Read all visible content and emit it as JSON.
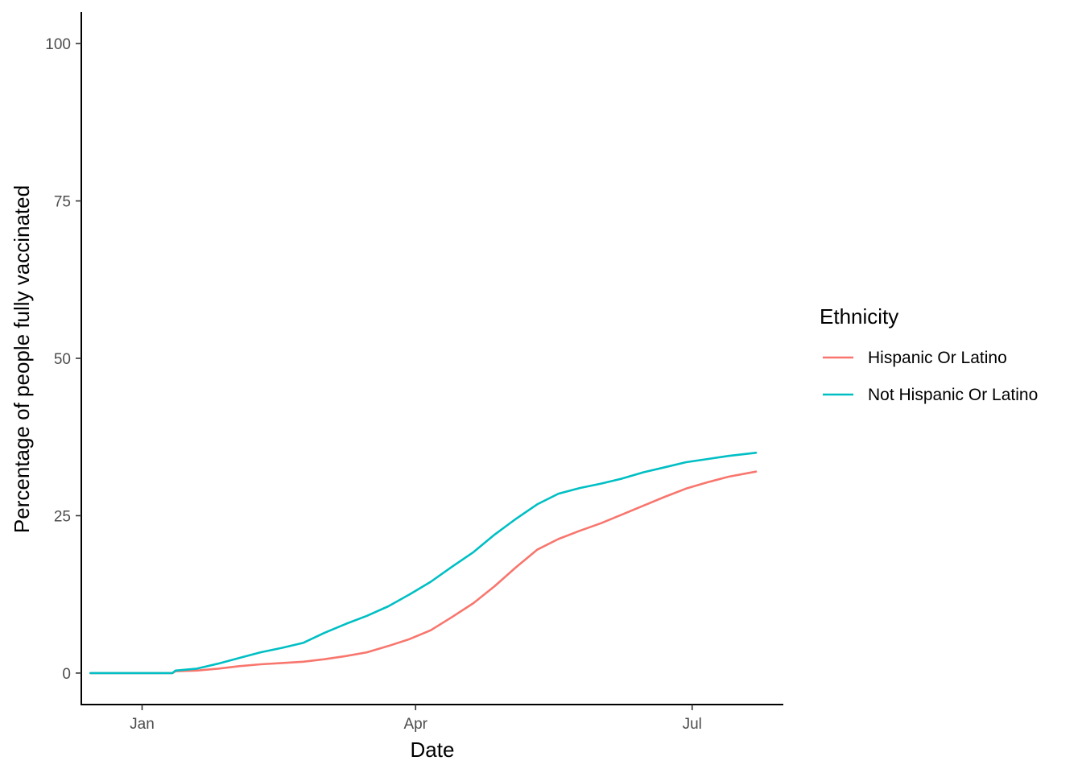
{
  "chart_data": {
    "type": "line",
    "title": "",
    "xlabel": "Date",
    "ylabel": "Percentage of people fully vaccinated",
    "x_axis_type": "date",
    "xlim": [
      "2020-12-12",
      "2021-07-31"
    ],
    "ylim": [
      -5,
      105
    ],
    "x_ticks": [
      {
        "date": "2021-01-01",
        "label": "Jan"
      },
      {
        "date": "2021-04-01",
        "label": "Apr"
      },
      {
        "date": "2021-07-01",
        "label": "Jul"
      }
    ],
    "y_ticks": [
      0,
      25,
      50,
      75,
      100
    ],
    "grid": false,
    "legend": {
      "title": "Ethnicity",
      "position": "right"
    },
    "series": [
      {
        "name": "Hispanic Or Latino",
        "color": "#F8766D",
        "points": [
          [
            "2020-12-15",
            0.0
          ],
          [
            "2020-12-22",
            0.0
          ],
          [
            "2020-12-29",
            0.0
          ],
          [
            "2021-01-05",
            0.0
          ],
          [
            "2021-01-11",
            0.0
          ],
          [
            "2021-01-12",
            0.3
          ],
          [
            "2021-01-19",
            0.4
          ],
          [
            "2021-01-26",
            0.7
          ],
          [
            "2021-02-02",
            1.1
          ],
          [
            "2021-02-09",
            1.4
          ],
          [
            "2021-02-16",
            1.6
          ],
          [
            "2021-02-23",
            1.8
          ],
          [
            "2021-03-02",
            2.2
          ],
          [
            "2021-03-09",
            2.7
          ],
          [
            "2021-03-16",
            3.3
          ],
          [
            "2021-03-23",
            4.3
          ],
          [
            "2021-03-30",
            5.4
          ],
          [
            "2021-04-06",
            6.8
          ],
          [
            "2021-04-13",
            8.9
          ],
          [
            "2021-04-20",
            11.1
          ],
          [
            "2021-04-27",
            13.8
          ],
          [
            "2021-05-04",
            16.8
          ],
          [
            "2021-05-11",
            19.6
          ],
          [
            "2021-05-18",
            21.3
          ],
          [
            "2021-05-25",
            22.6
          ],
          [
            "2021-06-01",
            23.8
          ],
          [
            "2021-06-08",
            25.2
          ],
          [
            "2021-06-15",
            26.6
          ],
          [
            "2021-06-22",
            28.0
          ],
          [
            "2021-06-29",
            29.3
          ],
          [
            "2021-07-06",
            30.3
          ],
          [
            "2021-07-13",
            31.2
          ],
          [
            "2021-07-22",
            32.0
          ]
        ]
      },
      {
        "name": "Not Hispanic Or Latino",
        "color": "#00BFC4",
        "points": [
          [
            "2020-12-15",
            0.0
          ],
          [
            "2020-12-22",
            0.0
          ],
          [
            "2020-12-29",
            0.0
          ],
          [
            "2021-01-05",
            0.0
          ],
          [
            "2021-01-11",
            0.0
          ],
          [
            "2021-01-12",
            0.4
          ],
          [
            "2021-01-19",
            0.7
          ],
          [
            "2021-01-26",
            1.5
          ],
          [
            "2021-02-02",
            2.4
          ],
          [
            "2021-02-09",
            3.3
          ],
          [
            "2021-02-16",
            4.0
          ],
          [
            "2021-02-23",
            4.8
          ],
          [
            "2021-03-02",
            6.4
          ],
          [
            "2021-03-09",
            7.8
          ],
          [
            "2021-03-16",
            9.1
          ],
          [
            "2021-03-23",
            10.6
          ],
          [
            "2021-03-30",
            12.5
          ],
          [
            "2021-04-06",
            14.5
          ],
          [
            "2021-04-13",
            16.9
          ],
          [
            "2021-04-20",
            19.2
          ],
          [
            "2021-04-27",
            22.0
          ],
          [
            "2021-05-04",
            24.5
          ],
          [
            "2021-05-11",
            26.8
          ],
          [
            "2021-05-18",
            28.5
          ],
          [
            "2021-05-25",
            29.4
          ],
          [
            "2021-06-01",
            30.1
          ],
          [
            "2021-06-08",
            30.9
          ],
          [
            "2021-06-15",
            31.9
          ],
          [
            "2021-06-22",
            32.7
          ],
          [
            "2021-06-29",
            33.5
          ],
          [
            "2021-07-06",
            34.0
          ],
          [
            "2021-07-13",
            34.5
          ],
          [
            "2021-07-22",
            35.0
          ]
        ]
      }
    ]
  }
}
